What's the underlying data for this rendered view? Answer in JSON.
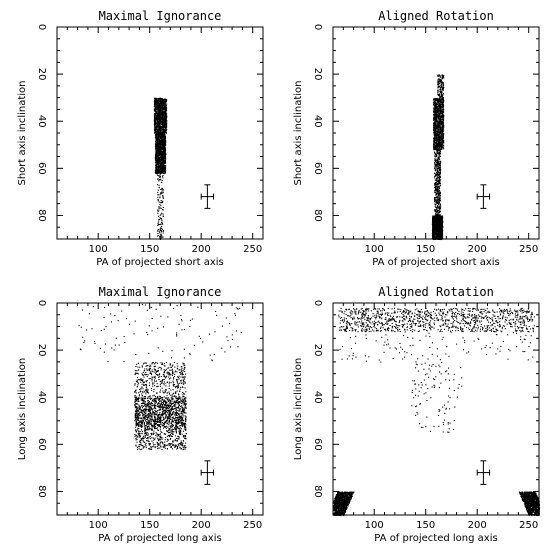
{
  "chart_data": [
    {
      "type": "scatter",
      "title": "Maximal Ignorance",
      "xlabel": "PA of projected short axis",
      "ylabel": "Short axis inclination",
      "xlim": [
        60,
        260
      ],
      "ylim": [
        90,
        0
      ],
      "xticks": [
        100,
        150,
        200,
        250
      ],
      "yticks": [
        0,
        20,
        40,
        60,
        80
      ],
      "y_inverted": true,
      "clusters": [
        {
          "x_center": 160,
          "x_halfwidth": 6,
          "y_range": [
            30,
            45
          ],
          "density": "high"
        },
        {
          "x_center": 160,
          "x_halfwidth": 5,
          "y_range": [
            45,
            62
          ],
          "density": "high"
        },
        {
          "x_center": 160,
          "x_halfwidth": 3,
          "y_range": [
            62,
            90
          ],
          "density": "low"
        }
      ],
      "error_bar": {
        "x": 206,
        "y": 72,
        "xerr": 6,
        "yerr": 5
      }
    },
    {
      "type": "scatter",
      "title": "Aligned Rotation",
      "xlabel": "PA of projected short axis",
      "ylabel": "Short axis inclination",
      "xlim": [
        60,
        260
      ],
      "ylim": [
        90,
        0
      ],
      "xticks": [
        100,
        150,
        200,
        250
      ],
      "yticks": [
        0,
        20,
        40,
        60,
        80
      ],
      "y_inverted": true,
      "clusters": [
        {
          "x_center": 164,
          "x_halfwidth": 3,
          "y_range": [
            20,
            30
          ],
          "density": "low"
        },
        {
          "x_center": 162,
          "x_halfwidth": 5,
          "y_range": [
            30,
            52
          ],
          "density": "high"
        },
        {
          "x_center": 161,
          "x_halfwidth": 3,
          "y_range": [
            52,
            80
          ],
          "density": "medium"
        },
        {
          "x_center": 161,
          "x_halfwidth": 5,
          "y_range": [
            80,
            90
          ],
          "density": "high"
        }
      ],
      "error_bar": {
        "x": 206,
        "y": 72,
        "xerr": 6,
        "yerr": 5
      }
    },
    {
      "type": "scatter",
      "title": "Maximal Ignorance",
      "xlabel": "PA of projected long axis",
      "ylabel": "Long axis inclination",
      "xlim": [
        60,
        260
      ],
      "ylim": [
        90,
        0
      ],
      "xticks": [
        100,
        150,
        200,
        250
      ],
      "yticks": [
        0,
        20,
        40,
        60,
        80
      ],
      "y_inverted": true,
      "clusters": [
        {
          "x_center": 160,
          "x_halfwidth": 25,
          "y_range": [
            25,
            40
          ],
          "density": "medium"
        },
        {
          "x_center": 160,
          "x_halfwidth": 25,
          "y_range": [
            40,
            52
          ],
          "density": "high"
        },
        {
          "x_center": 160,
          "x_halfwidth": 25,
          "y_range": [
            52,
            62
          ],
          "density": "medium"
        },
        {
          "x_center": 160,
          "x_halfwidth": 80,
          "y_range": [
            0,
            25
          ],
          "density": "sparse"
        }
      ],
      "error_bar": {
        "x": 206,
        "y": 72,
        "xerr": 6,
        "yerr": 5
      }
    },
    {
      "type": "scatter",
      "title": "Aligned Rotation",
      "xlabel": "PA of projected long axis",
      "ylabel": "Long axis inclination",
      "xlim": [
        60,
        260
      ],
      "ylim": [
        90,
        0
      ],
      "xticks": [
        100,
        150,
        200,
        250
      ],
      "yticks": [
        0,
        20,
        40,
        60,
        80
      ],
      "y_inverted": true,
      "clusters": [
        {
          "x_center": 160,
          "x_halfwidth": 95,
          "y_range": [
            2,
            12
          ],
          "density": "high"
        },
        {
          "x_center": 160,
          "x_halfwidth": 95,
          "y_range": [
            12,
            25
          ],
          "density": "sparse"
        },
        {
          "x_center": 160,
          "x_halfwidth": 25,
          "y_range": [
            25,
            55
          ],
          "density": "sparse"
        },
        {
          "x_center": 72,
          "x_halfwidth": 8,
          "y_range": [
            80,
            90
          ],
          "density": "high",
          "slant": -1
        },
        {
          "x_center": 248,
          "x_halfwidth": 8,
          "y_range": [
            80,
            90
          ],
          "density": "high",
          "slant": 1
        }
      ],
      "error_bar": {
        "x": 206,
        "y": 72,
        "xerr": 6,
        "yerr": 5
      }
    }
  ]
}
